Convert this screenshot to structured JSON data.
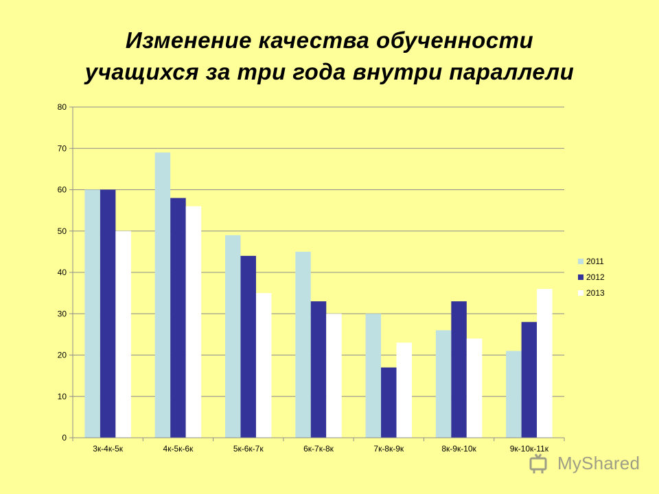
{
  "title": {
    "line1": "Изменение качества обученности",
    "line2": "учащихся за три года внутри параллели"
  },
  "watermark": "MyShared",
  "chart_data": {
    "type": "bar",
    "categories": [
      "3к-4к-5к",
      "4к-5к-6к",
      "5к-6к-7к",
      "6к-7к-8к",
      "7к-8к-9к",
      "8к-9к-10к",
      "9к-10к-11к"
    ],
    "series": [
      {
        "name": "2011",
        "color": "#BFE0E3",
        "values": [
          60,
          69,
          49,
          45,
          30,
          26,
          21
        ]
      },
      {
        "name": "2012",
        "color": "#333399",
        "values": [
          60,
          58,
          44,
          33,
          17,
          33,
          28
        ]
      },
      {
        "name": "2013",
        "color": "#FFFFFF",
        "values": [
          50,
          56,
          35,
          30,
          23,
          24,
          36
        ]
      }
    ],
    "ylim": [
      0,
      80
    ],
    "yticks": [
      0,
      10,
      20,
      30,
      40,
      50,
      60,
      70,
      80
    ],
    "grid": true,
    "legend_position": "right"
  }
}
